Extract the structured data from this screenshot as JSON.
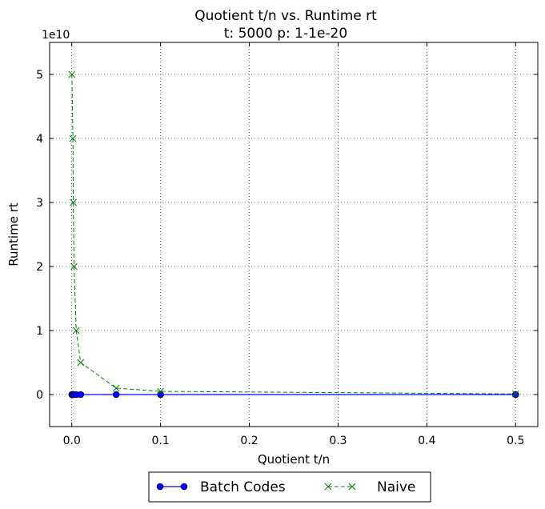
{
  "chart_data": {
    "type": "line",
    "title": "Quotient t/n vs. Runtime rt",
    "subtitle": "t: 5000 p: 1-1e-20",
    "xlabel": "Quotient t/n",
    "ylabel": "Runtime rt",
    "y_multiplier_label": "1e10",
    "xlim": [
      -0.025,
      0.525
    ],
    "ylim": [
      -0.5,
      5.5
    ],
    "y_scale_factor": 10000000000,
    "grid": true,
    "legend_position": "below",
    "x_ticks": [
      0.0,
      0.1,
      0.2,
      0.3,
      0.4,
      0.5
    ],
    "x_tick_labels": [
      "0.0",
      "0.1",
      "0.2",
      "0.3",
      "0.4",
      "0.5"
    ],
    "y_ticks": [
      0,
      1,
      2,
      3,
      4,
      5
    ],
    "y_tick_labels": [
      "0",
      "1",
      "2",
      "3",
      "4",
      "5"
    ],
    "series": [
      {
        "name": "Batch Codes",
        "color": "#0000ff",
        "marker": "circle",
        "line_style": "solid",
        "x": [
          0.0001,
          0.00025,
          0.0005,
          0.001,
          0.0025,
          0.005,
          0.01,
          0.05,
          0.1,
          0.5
        ],
        "y": [
          0,
          0,
          0,
          0,
          0,
          0,
          0,
          0,
          0,
          0
        ]
      },
      {
        "name": "Naive",
        "color": "#008000",
        "marker": "x",
        "line_style": "dashed",
        "x": [
          0.0001,
          0.00125,
          0.00167,
          0.0025,
          0.005,
          0.01,
          0.05,
          0.1,
          0.5
        ],
        "y": [
          5.0,
          4.0,
          3.0,
          2.0,
          1.0,
          0.5,
          0.1,
          0.05,
          0.01
        ]
      }
    ]
  }
}
